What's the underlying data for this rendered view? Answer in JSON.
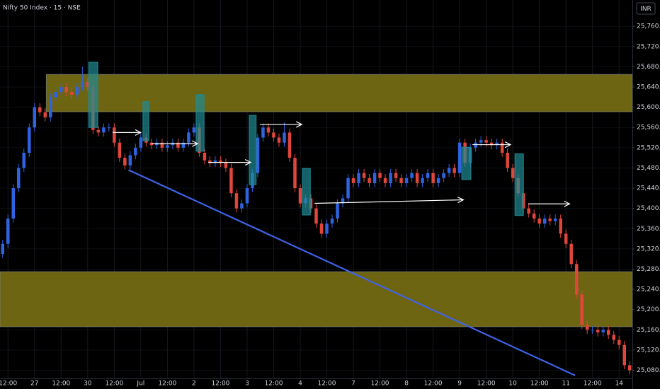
{
  "chart_data": {
    "type": "candlestick",
    "title": "Nifty 50 Index · 15 · NSE",
    "currency": "INR",
    "up_color": "#2f63e0",
    "down_color": "#e0463b",
    "zone_color": "#6e6512",
    "box_color": "#1f8a94",
    "arrow_color": "#ffffff",
    "trendline_color": "#3f63e8",
    "grid": true,
    "xlim": [
      -0.5,
      118.5
    ],
    "ylim": [
      25064,
      25812
    ],
    "xticks": [
      {
        "value": 1,
        "label": "12:00"
      },
      {
        "value": 6,
        "label": "27"
      },
      {
        "value": 11,
        "label": "12:00"
      },
      {
        "value": 16,
        "label": "30"
      },
      {
        "value": 21,
        "label": "12:00"
      },
      {
        "value": 26,
        "label": "Jul"
      },
      {
        "value": 31,
        "label": "12:00"
      },
      {
        "value": 36,
        "label": "2"
      },
      {
        "value": 41,
        "label": "12:00"
      },
      {
        "value": 46,
        "label": "3"
      },
      {
        "value": 51,
        "label": "12:00"
      },
      {
        "value": 56,
        "label": "4"
      },
      {
        "value": 61,
        "label": "12:00"
      },
      {
        "value": 66,
        "label": "7"
      },
      {
        "value": 71,
        "label": "12:00"
      },
      {
        "value": 76,
        "label": "8"
      },
      {
        "value": 81,
        "label": "12:00"
      },
      {
        "value": 86,
        "label": "9"
      },
      {
        "value": 91,
        "label": "12:00"
      },
      {
        "value": 96,
        "label": "10"
      },
      {
        "value": 101,
        "label": "12:00"
      },
      {
        "value": 106,
        "label": "11"
      },
      {
        "value": 111,
        "label": "12:00"
      },
      {
        "value": 116,
        "label": "14"
      }
    ],
    "yticks": [
      {
        "value": 25080,
        "label": "25,080.00"
      },
      {
        "value": 25120,
        "label": "25,120.00"
      },
      {
        "value": 25160,
        "label": "25,160.00"
      },
      {
        "value": 25200,
        "label": "25,200.00"
      },
      {
        "value": 25240,
        "label": "25,240.00"
      },
      {
        "value": 25280,
        "label": "25,280.00"
      },
      {
        "value": 25320,
        "label": "25,320.00"
      },
      {
        "value": 25360,
        "label": "25,360.00"
      },
      {
        "value": 25400,
        "label": "25,400.00"
      },
      {
        "value": 25440,
        "label": "25,440.00"
      },
      {
        "value": 25480,
        "label": "25,480.00"
      },
      {
        "value": 25520,
        "label": "25,520.00"
      },
      {
        "value": 25560,
        "label": "25,560.00"
      },
      {
        "value": 25600,
        "label": "25,600.00"
      },
      {
        "value": 25640,
        "label": "25,640.00"
      },
      {
        "value": 25680,
        "label": "25,680.00"
      },
      {
        "value": 25720,
        "label": "25,720.00"
      },
      {
        "value": 25760,
        "label": "25,760.00"
      }
    ],
    "ohlc": [
      [
        25310,
        25338,
        25302,
        25330
      ],
      [
        25330,
        25388,
        25322,
        25380
      ],
      [
        25380,
        25448,
        25372,
        25440
      ],
      [
        25440,
        25488,
        25432,
        25480
      ],
      [
        25480,
        25518,
        25472,
        25510
      ],
      [
        25510,
        25568,
        25502,
        25560
      ],
      [
        25560,
        25608,
        25552,
        25600
      ],
      [
        25600,
        25608,
        25582,
        25590
      ],
      [
        25590,
        25598,
        25572,
        25580
      ],
      [
        25580,
        25628,
        25572,
        25620
      ],
      [
        25620,
        25638,
        25612,
        25630
      ],
      [
        25630,
        25648,
        25622,
        25640
      ],
      [
        25640,
        25648,
        25622,
        25630
      ],
      [
        25630,
        25638,
        25617,
        25625
      ],
      [
        25625,
        25648,
        25617,
        25640
      ],
      [
        25640,
        25680,
        25632,
        25650
      ],
      [
        25650,
        25658,
        25632,
        25640
      ],
      [
        25640,
        25648,
        25547,
        25555
      ],
      [
        25555,
        25563,
        25542,
        25550
      ],
      [
        25550,
        25568,
        25542,
        25560
      ],
      [
        25560,
        25568,
        25552,
        25560
      ],
      [
        25560,
        25568,
        25522,
        25530
      ],
      [
        25530,
        25538,
        25492,
        25500
      ],
      [
        25500,
        25508,
        25477,
        25485
      ],
      [
        25485,
        25513,
        25477,
        25505
      ],
      [
        25505,
        25528,
        25497,
        25520
      ],
      [
        25520,
        25548,
        25512,
        25540
      ],
      [
        25540,
        25548,
        25522,
        25530
      ],
      [
        25530,
        25538,
        25517,
        25525
      ],
      [
        25525,
        25538,
        25517,
        25530
      ],
      [
        25530,
        25538,
        25512,
        25520
      ],
      [
        25520,
        25533,
        25512,
        25525
      ],
      [
        25525,
        25538,
        25517,
        25530
      ],
      [
        25530,
        25538,
        25512,
        25520
      ],
      [
        25520,
        25538,
        25512,
        25530
      ],
      [
        25530,
        25558,
        25522,
        25550
      ],
      [
        25550,
        25568,
        25542,
        25560
      ],
      [
        25560,
        25568,
        25502,
        25510
      ],
      [
        25510,
        25518,
        25487,
        25495
      ],
      [
        25495,
        25503,
        25482,
        25490
      ],
      [
        25490,
        25503,
        25482,
        25495
      ],
      [
        25495,
        25503,
        25482,
        25490
      ],
      [
        25490,
        25498,
        25472,
        25480
      ],
      [
        25480,
        25488,
        25422,
        25430
      ],
      [
        25430,
        25438,
        25392,
        25400
      ],
      [
        25400,
        25418,
        25392,
        25410
      ],
      [
        25410,
        25448,
        25402,
        25440
      ],
      [
        25440,
        25478,
        25432,
        25470
      ],
      [
        25470,
        25548,
        25462,
        25540
      ],
      [
        25540,
        25568,
        25532,
        25560
      ],
      [
        25560,
        25568,
        25542,
        25550
      ],
      [
        25550,
        25558,
        25532,
        25540
      ],
      [
        25540,
        25548,
        25522,
        25530
      ],
      [
        25530,
        25570,
        25522,
        25550
      ],
      [
        25550,
        25558,
        25492,
        25500
      ],
      [
        25500,
        25508,
        25432,
        25440
      ],
      [
        25440,
        25448,
        25402,
        25410
      ],
      [
        25410,
        25428,
        25402,
        25420
      ],
      [
        25420,
        25428,
        25392,
        25400
      ],
      [
        25400,
        25408,
        25362,
        25370
      ],
      [
        25370,
        25378,
        25342,
        25350
      ],
      [
        25350,
        25378,
        25342,
        25370
      ],
      [
        25370,
        25388,
        25362,
        25380
      ],
      [
        25380,
        25418,
        25372,
        25410
      ],
      [
        25410,
        25428,
        25402,
        25420
      ],
      [
        25420,
        25468,
        25412,
        25460
      ],
      [
        25460,
        25468,
        25442,
        25450
      ],
      [
        25450,
        25478,
        25442,
        25470
      ],
      [
        25470,
        25478,
        25452,
        25460
      ],
      [
        25460,
        25468,
        25442,
        25450
      ],
      [
        25450,
        25478,
        25442,
        25470
      ],
      [
        25470,
        25478,
        25452,
        25460
      ],
      [
        25460,
        25468,
        25442,
        25450
      ],
      [
        25450,
        25478,
        25442,
        25470
      ],
      [
        25470,
        25478,
        25452,
        25460
      ],
      [
        25460,
        25468,
        25442,
        25450
      ],
      [
        25450,
        25468,
        25442,
        25460
      ],
      [
        25460,
        25478,
        25452,
        25470
      ],
      [
        25470,
        25478,
        25442,
        25450
      ],
      [
        25450,
        25468,
        25442,
        25460
      ],
      [
        25460,
        25478,
        25452,
        25470
      ],
      [
        25470,
        25478,
        25442,
        25450
      ],
      [
        25450,
        25468,
        25442,
        25460
      ],
      [
        25460,
        25478,
        25452,
        25470
      ],
      [
        25470,
        25488,
        25462,
        25480
      ],
      [
        25480,
        25488,
        25462,
        25470
      ],
      [
        25470,
        25538,
        25462,
        25530
      ],
      [
        25530,
        25538,
        25482,
        25490
      ],
      [
        25490,
        25528,
        25482,
        25520
      ],
      [
        25520,
        25538,
        25512,
        25530
      ],
      [
        25530,
        25543,
        25522,
        25535
      ],
      [
        25535,
        25543,
        25522,
        25530
      ],
      [
        25530,
        25538,
        25517,
        25525
      ],
      [
        25525,
        25538,
        25517,
        25530
      ],
      [
        25530,
        25538,
        25502,
        25510
      ],
      [
        25510,
        25518,
        25472,
        25480
      ],
      [
        25480,
        25488,
        25452,
        25460
      ],
      [
        25460,
        25468,
        25422,
        25430
      ],
      [
        25430,
        25438,
        25392,
        25400
      ],
      [
        25400,
        25408,
        25382,
        25390
      ],
      [
        25390,
        25398,
        25372,
        25380
      ],
      [
        25380,
        25388,
        25362,
        25370
      ],
      [
        25370,
        25388,
        25362,
        25380
      ],
      [
        25380,
        25388,
        25367,
        25375
      ],
      [
        25375,
        25388,
        25367,
        25380
      ],
      [
        25380,
        25388,
        25342,
        25350
      ],
      [
        25350,
        25358,
        25322,
        25330
      ],
      [
        25330,
        25338,
        25282,
        25290
      ],
      [
        25290,
        25298,
        25222,
        25230
      ],
      [
        25230,
        25238,
        25162,
        25170
      ],
      [
        25170,
        25178,
        25152,
        25160
      ],
      [
        25160,
        25168,
        25152,
        25160
      ],
      [
        25160,
        25168,
        25147,
        25155
      ],
      [
        25155,
        25168,
        25147,
        25160
      ],
      [
        25160,
        25168,
        25142,
        25150
      ],
      [
        25150,
        25158,
        25132,
        25140
      ],
      [
        25140,
        25148,
        25122,
        25130
      ],
      [
        25130,
        25138,
        25082,
        25090
      ],
      [
        25090,
        25098,
        25072,
        25080
      ]
    ],
    "zones": [
      {
        "x": [
          8.2,
          118.5
        ],
        "y": [
          25665,
          25591
        ]
      },
      {
        "x": [
          -0.5,
          118.5
        ],
        "y": [
          25275,
          25166
        ]
      }
    ],
    "boxes": [
      {
        "x": [
          16.2,
          17.9
        ],
        "y": [
          25689,
          25560
        ]
      },
      {
        "x": [
          26.4,
          27.5
        ],
        "y": [
          25611,
          25534
        ]
      },
      {
        "x": [
          36.4,
          37.9
        ],
        "y": [
          25625,
          25513
        ]
      },
      {
        "x": [
          46.4,
          47.7
        ],
        "y": [
          25584,
          25447
        ]
      },
      {
        "x": [
          56.4,
          57.9
        ],
        "y": [
          25479,
          25387
        ]
      },
      {
        "x": [
          86.4,
          88.1
        ],
        "y": [
          25521,
          25457
        ]
      },
      {
        "x": [
          96.4,
          98.0
        ],
        "y": [
          25508,
          25386
        ]
      }
    ],
    "arrows": [
      {
        "x": [
          20.7,
          26.0
        ],
        "y": [
          25550,
          25550
        ]
      },
      {
        "x": [
          28.0,
          36.7
        ],
        "y": [
          25528,
          25528
        ]
      },
      {
        "x": [
          38.7,
          46.7
        ],
        "y": [
          25491,
          25491
        ]
      },
      {
        "x": [
          48.4,
          56.3
        ],
        "y": [
          25566,
          25566
        ]
      },
      {
        "x": [
          58.7,
          86.7
        ],
        "y": [
          25410,
          25417
        ]
      },
      {
        "x": [
          88.4,
          95.6
        ],
        "y": [
          25526,
          25526
        ]
      },
      {
        "x": [
          98.9,
          106.7
        ],
        "y": [
          25409,
          25409
        ]
      }
    ],
    "trendline": {
      "x": [
        23.7,
        107.7
      ],
      "y": [
        25476,
        25070
      ]
    }
  }
}
